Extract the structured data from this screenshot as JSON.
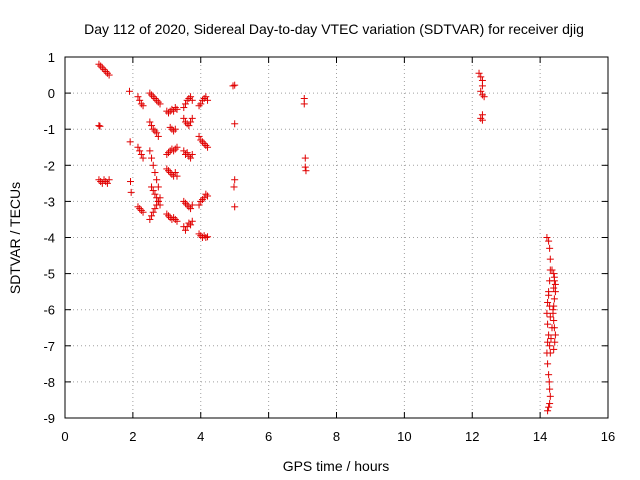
{
  "chart_data": {
    "type": "scatter",
    "title": "Day 112 of 2020, Sidereal Day-to-day VTEC variation (SDTVAR) for receiver djig",
    "xlabel": "GPS time / hours",
    "ylabel": "SDTVAR / TECUs",
    "xlim": [
      0,
      16
    ],
    "ylim": [
      -9,
      1
    ],
    "xticks": [
      "0",
      "2",
      "4",
      "6",
      "8",
      "10",
      "12",
      "14",
      "16"
    ],
    "yticks": [
      "1",
      "0",
      "-1",
      "-2",
      "-3",
      "-4",
      "-5",
      "-6",
      "-7",
      "-8",
      "-9"
    ],
    "grid": true,
    "marker": "+",
    "color": "#e00000",
    "series": [
      {
        "name": "SDTVAR",
        "tracks": [
          {
            "x": [
              1.0,
              1.05,
              1.1,
              1.15,
              1.2,
              1.25,
              1.3
            ],
            "y": [
              0.8,
              0.75,
              0.7,
              0.65,
              0.6,
              0.55,
              0.5
            ]
          },
          {
            "x": [
              1.0,
              1.03
            ],
            "y": [
              -0.9,
              -0.92
            ]
          },
          {
            "x": [
              1.0,
              1.05,
              1.1,
              1.15,
              1.2,
              1.25,
              1.3
            ],
            "y": [
              -2.4,
              -2.45,
              -2.5,
              -2.4,
              -2.45,
              -2.5,
              -2.4
            ]
          },
          {
            "x": [
              1.9,
              1.92,
              1.93,
              1.95
            ],
            "y": [
              0.05,
              -1.35,
              -2.45,
              -2.75
            ]
          },
          {
            "x": [
              2.15,
              2.2,
              2.25,
              2.3
            ],
            "y": [
              -0.1,
              -0.2,
              -0.3,
              -0.35
            ]
          },
          {
            "x": [
              2.15,
              2.2,
              2.25,
              2.3
            ],
            "y": [
              -1.5,
              -1.6,
              -1.7,
              -1.8
            ]
          },
          {
            "x": [
              2.15,
              2.2,
              2.25,
              2.3
            ],
            "y": [
              -3.15,
              -3.2,
              -3.25,
              -3.3
            ]
          },
          {
            "x": [
              2.5,
              2.55,
              2.6,
              2.65,
              2.7,
              2.75,
              2.8
            ],
            "y": [
              0.0,
              -0.05,
              -0.1,
              -0.15,
              -0.2,
              -0.25,
              -0.3
            ]
          },
          {
            "x": [
              2.5,
              2.55,
              2.6,
              2.65,
              2.7,
              2.75
            ],
            "y": [
              -0.8,
              -0.9,
              -1.0,
              -1.05,
              -1.1,
              -1.2
            ]
          },
          {
            "x": [
              2.5,
              2.55,
              2.6,
              2.65,
              2.7,
              2.75
            ],
            "y": [
              -1.6,
              -1.8,
              -2.0,
              -2.2,
              -2.4,
              -2.6
            ]
          },
          {
            "x": [
              2.55,
              2.6,
              2.65,
              2.7,
              2.75,
              2.8
            ],
            "y": [
              -2.6,
              -2.7,
              -2.8,
              -2.9,
              -3.0,
              -3.1
            ]
          },
          {
            "x": [
              2.5,
              2.55,
              2.6,
              2.65,
              2.7,
              2.75,
              2.8
            ],
            "y": [
              -3.5,
              -3.4,
              -3.3,
              -3.2,
              -3.1,
              -3.0,
              -2.9
            ]
          },
          {
            "x": [
              3.0,
              3.05,
              3.1,
              3.15,
              3.2,
              3.25,
              3.3
            ],
            "y": [
              -0.5,
              -0.55,
              -0.5,
              -0.45,
              -0.5,
              -0.4,
              -0.45
            ]
          },
          {
            "x": [
              3.1,
              3.15,
              3.2,
              3.25
            ],
            "y": [
              -0.95,
              -1.0,
              -1.05,
              -1.0
            ]
          },
          {
            "x": [
              3.0,
              3.05,
              3.1,
              3.15,
              3.2,
              3.25,
              3.3
            ],
            "y": [
              -1.7,
              -1.65,
              -1.6,
              -1.55,
              -1.6,
              -1.55,
              -1.5
            ]
          },
          {
            "x": [
              3.0,
              3.05,
              3.1,
              3.15,
              3.2,
              3.25,
              3.3
            ],
            "y": [
              -2.1,
              -2.15,
              -2.2,
              -2.25,
              -2.3,
              -2.2,
              -2.3
            ]
          },
          {
            "x": [
              3.0,
              3.05,
              3.1,
              3.15,
              3.2,
              3.25,
              3.3
            ],
            "y": [
              -3.35,
              -3.4,
              -3.45,
              -3.5,
              -3.45,
              -3.5,
              -3.55
            ]
          },
          {
            "x": [
              3.5,
              3.55,
              3.6,
              3.65,
              3.7,
              3.75
            ],
            "y": [
              -0.4,
              -0.3,
              -0.2,
              -0.15,
              -0.1,
              -0.2
            ]
          },
          {
            "x": [
              3.5,
              3.55,
              3.6,
              3.65,
              3.7,
              3.75
            ],
            "y": [
              -0.7,
              -0.8,
              -0.85,
              -0.9,
              -0.8,
              -0.7
            ]
          },
          {
            "x": [
              3.5,
              3.55,
              3.6,
              3.65,
              3.7,
              3.75
            ],
            "y": [
              -1.6,
              -1.7,
              -1.65,
              -1.75,
              -1.8,
              -1.7
            ]
          },
          {
            "x": [
              3.5,
              3.55,
              3.6,
              3.65,
              3.7,
              3.75
            ],
            "y": [
              -3.0,
              -3.05,
              -3.1,
              -3.15,
              -3.2,
              -3.1
            ]
          },
          {
            "x": [
              3.5,
              3.55,
              3.6,
              3.65,
              3.7,
              3.75
            ],
            "y": [
              -3.7,
              -3.8,
              -3.7,
              -3.6,
              -3.65,
              -3.55
            ]
          },
          {
            "x": [
              3.95,
              4.0,
              4.05,
              4.1,
              4.15,
              4.2
            ],
            "y": [
              -0.35,
              -0.3,
              -0.2,
              -0.15,
              -0.1,
              -0.2
            ]
          },
          {
            "x": [
              3.95,
              4.0,
              4.05,
              4.1,
              4.15,
              4.2
            ],
            "y": [
              -1.2,
              -1.3,
              -1.35,
              -1.4,
              -1.45,
              -1.5
            ]
          },
          {
            "x": [
              3.95,
              4.0,
              4.05,
              4.1,
              4.15,
              4.2
            ],
            "y": [
              -3.1,
              -3.0,
              -2.95,
              -2.9,
              -2.8,
              -2.85
            ]
          },
          {
            "x": [
              3.95,
              4.0,
              4.05,
              4.1,
              4.15,
              4.2
            ],
            "y": [
              -3.9,
              -3.95,
              -4.0,
              -3.95,
              -4.0,
              -3.98
            ]
          },
          {
            "x": [
              4.95,
              5.0,
              5.0,
              5.0,
              4.98,
              5.0
            ],
            "y": [
              0.2,
              0.22,
              -0.85,
              -2.4,
              -2.6,
              -3.15
            ]
          },
          {
            "x": [
              7.05,
              7.05,
              7.08,
              7.08,
              7.1
            ],
            "y": [
              -0.15,
              -0.3,
              -1.8,
              -2.05,
              -2.15
            ]
          },
          {
            "x": [
              12.2,
              12.25,
              12.3,
              12.3,
              12.25,
              12.3,
              12.35,
              12.3,
              12.25,
              12.3
            ],
            "y": [
              0.55,
              0.45,
              0.35,
              0.2,
              0.05,
              -0.05,
              -0.1,
              -0.6,
              -0.7,
              -0.75
            ]
          },
          {
            "x": [
              14.2,
              14.25,
              14.28,
              14.3,
              14.3,
              14.28,
              14.25,
              14.22,
              14.2,
              14.22,
              14.25,
              14.28,
              14.3,
              14.32,
              14.35,
              14.3,
              14.28,
              14.25,
              14.22,
              14.2,
              14.22,
              14.25,
              14.27,
              14.28,
              14.3,
              14.28,
              14.25,
              14.22
            ],
            "y": [
              -4.0,
              -4.1,
              -4.3,
              -4.6,
              -4.9,
              -5.2,
              -5.5,
              -5.8,
              -6.1,
              -6.4,
              -6.7,
              -7.0,
              -7.2,
              -6.8,
              -6.5,
              -6.2,
              -5.9,
              -5.6,
              -6.9,
              -7.2,
              -7.5,
              -7.8,
              -8.0,
              -8.2,
              -8.4,
              -8.6,
              -8.7,
              -8.8
            ]
          },
          {
            "x": [
              14.35,
              14.4,
              14.42,
              14.45,
              14.45,
              14.42,
              14.4,
              14.38,
              14.4,
              14.42,
              14.45,
              14.43,
              14.4,
              14.38,
              14.4,
              14.42
            ],
            "y": [
              -4.9,
              -5.0,
              -5.1,
              -5.3,
              -5.5,
              -5.7,
              -5.9,
              -6.1,
              -6.3,
              -6.5,
              -6.7,
              -6.9,
              -7.1,
              -6.0,
              -5.4,
              -5.2
            ]
          }
        ]
      }
    ]
  }
}
